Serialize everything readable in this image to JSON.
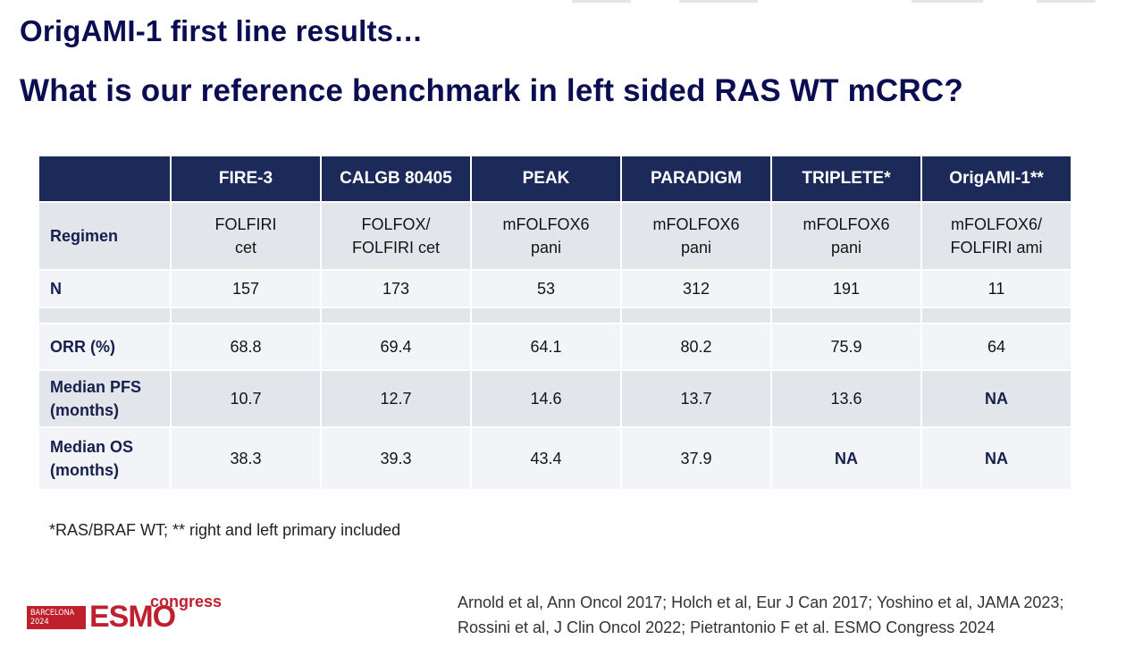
{
  "title": "OrigAMI-1 first line results…",
  "subtitle": "What is our reference benchmark in left sided RAS WT mCRC?",
  "table": {
    "columns": [
      "FIRE-3",
      "CALGB 80405",
      "PEAK",
      "PARADIGM",
      "TRIPLETE*",
      "OrigAMI-1**"
    ],
    "regimen": {
      "label": "Regimen",
      "values": [
        [
          "FOLFIRI",
          "cet"
        ],
        [
          "FOLFOX/",
          "FOLFIRI cet"
        ],
        [
          "mFOLFOX6",
          "pani"
        ],
        [
          "mFOLFOX6",
          "pani"
        ],
        [
          "mFOLFOX6",
          "pani"
        ],
        [
          "mFOLFOX6/",
          "FOLFIRI ami"
        ]
      ]
    },
    "n": {
      "label": "N",
      "values": [
        "157",
        "173",
        "53",
        "312",
        "191",
        "11"
      ]
    },
    "orr": {
      "label": "ORR (%)",
      "values": [
        "68.8",
        "69.4",
        "64.1",
        "80.2",
        "75.9",
        "64"
      ]
    },
    "pfs": {
      "label_lines": [
        "Median PFS",
        "(months)"
      ],
      "values": [
        "10.7",
        "12.7",
        "14.6",
        "13.7",
        "13.6",
        "NA"
      ]
    },
    "os": {
      "label_lines": [
        "Median OS",
        "(months)"
      ],
      "values": [
        "38.3",
        "39.3",
        "43.4",
        "37.9",
        "NA",
        "NA"
      ]
    }
  },
  "footnote": "*RAS/BRAF WT; ** right and left primary included",
  "logo": {
    "city_line1": "BARCELONA",
    "city_line2": "2024",
    "brand": "ESMO",
    "suffix": "congress"
  },
  "references": [
    "Arnold et al, Ann Oncol 2017; Holch et al, Eur J Can 2017; Yoshino et al, JAMA 2023;",
    "Rossini et al, J Clin Oncol 2022; Pietrantonio F et al. ESMO Congress 2024"
  ],
  "colors": {
    "header_bg": "#1b2a59",
    "title": "#0b0d52",
    "brand_red": "#c0202d",
    "row_dark": "#e2e5ea",
    "row_light": "#f2f4f7"
  }
}
